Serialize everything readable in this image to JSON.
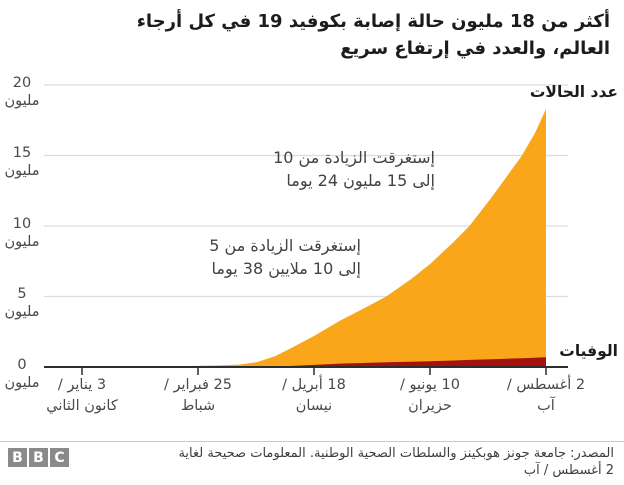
{
  "chart_data": {
    "type": "area",
    "title": "أكثر من 18 مليون حالة إصابة بكوفيد 19 في كل أرجاء\nالعالم، والعدد في إرتفاع سريع",
    "ylim": [
      0,
      20
    ],
    "grid": true,
    "x_range_days": 212,
    "y_ticks": [
      {
        "value": "20",
        "unit": "مليون",
        "millions": 20
      },
      {
        "value": "15",
        "unit": "مليون",
        "millions": 15
      },
      {
        "value": "10",
        "unit": "مليون",
        "millions": 10
      },
      {
        "value": "5",
        "unit": "مليون",
        "millions": 5
      },
      {
        "value": "0",
        "unit": "مليون",
        "millions": 0
      }
    ],
    "x_ticks": [
      {
        "line1": "3 يناير /",
        "line2": "كانون الثاني",
        "day": 0
      },
      {
        "line1": "25 فبراير /",
        "line2": "شباط",
        "day": 53
      },
      {
        "line1": "18 أبريل /",
        "line2": "نيسان",
        "day": 106
      },
      {
        "line1": "10 يونيو /",
        "line2": "حزيران",
        "day": 159
      },
      {
        "line1": "2 أغسطس /",
        "line2": "آب",
        "day": 212
      }
    ],
    "series": [
      {
        "name": "عدد الحالات",
        "color": "#FAA61A",
        "points_day_millions": [
          [
            0,
            0
          ],
          [
            20,
            0.003
          ],
          [
            38,
            0.04
          ],
          [
            53,
            0.08
          ],
          [
            63,
            0.11
          ],
          [
            72,
            0.17
          ],
          [
            80,
            0.35
          ],
          [
            88,
            0.75
          ],
          [
            95,
            1.3
          ],
          [
            106,
            2.2
          ],
          [
            118,
            3.3
          ],
          [
            128,
            4.1
          ],
          [
            139,
            5.0
          ],
          [
            150,
            6.2
          ],
          [
            159,
            7.3
          ],
          [
            170,
            8.9
          ],
          [
            177,
            10.0
          ],
          [
            187,
            12.0
          ],
          [
            194,
            13.5
          ],
          [
            201,
            15.0
          ],
          [
            207,
            16.6
          ],
          [
            212,
            18.3
          ]
        ]
      },
      {
        "name": "الوفيات",
        "color": "#A3120E",
        "points_day_millions": [
          [
            0,
            0
          ],
          [
            38,
            0.001
          ],
          [
            53,
            0.003
          ],
          [
            72,
            0.007
          ],
          [
            80,
            0.016
          ],
          [
            88,
            0.04
          ],
          [
            95,
            0.07
          ],
          [
            106,
            0.15
          ],
          [
            118,
            0.24
          ],
          [
            128,
            0.285
          ],
          [
            139,
            0.33
          ],
          [
            150,
            0.37
          ],
          [
            159,
            0.41
          ],
          [
            170,
            0.46
          ],
          [
            177,
            0.5
          ],
          [
            187,
            0.55
          ],
          [
            194,
            0.59
          ],
          [
            201,
            0.62
          ],
          [
            207,
            0.655
          ],
          [
            212,
            0.69
          ]
        ]
      }
    ],
    "annotations": [
      {
        "text": "إستغرقت الزيادة من 10\nإلى 15 مليون 24 يوما"
      },
      {
        "text": "إستغرقت الزيادة من 5\nإلى 10 ملايين 38 يوما"
      }
    ],
    "legend_position": "labels-at-right-edge"
  },
  "footer": {
    "source": "المصدر: جامعة جونز هوبكينز والسلطات الصحية الوطنية. المعلومات صحيحة لغاية\n2 أغسطس / آب",
    "logo_letters": [
      "B",
      "B",
      "C"
    ]
  }
}
